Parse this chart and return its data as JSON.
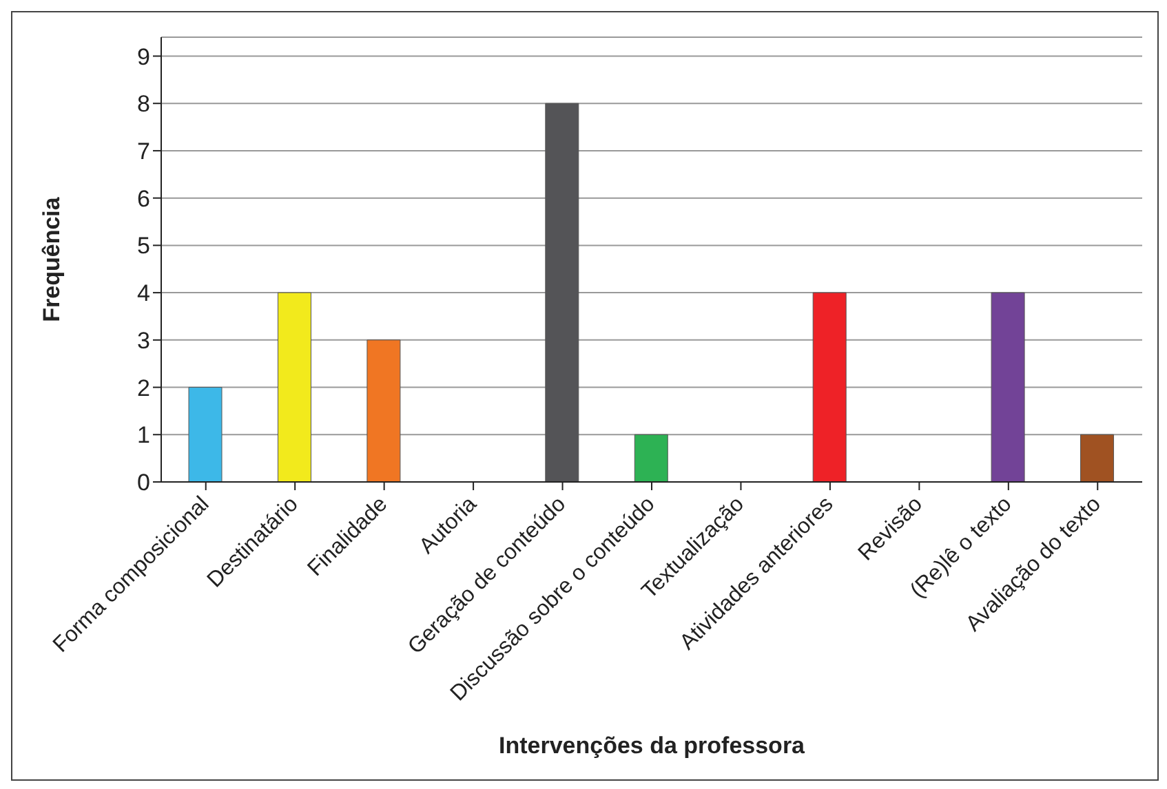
{
  "chart_data": {
    "type": "bar",
    "xlabel": "Intervenções da professora",
    "ylabel": "Frequência",
    "categories": [
      "Forma composicional",
      "Destinatário",
      "Finalidade",
      "Autoria",
      "Geração de conteúdo",
      "Discussão sobre o conteúdo",
      "Textualização",
      "Atividades anteriores",
      "Revisão",
      "(Re)lê o texto",
      "Avaliação do texto"
    ],
    "values": [
      2,
      4,
      3,
      0,
      8,
      1,
      0,
      4,
      0,
      4,
      1
    ],
    "colors": [
      "#3db8e8",
      "#f2ea1c",
      "#f07623",
      "#888888",
      "#545457",
      "#2db254",
      "#aaaaaa",
      "#ee2227",
      "#999999",
      "#724397",
      "#a05222"
    ],
    "ylim": [
      0,
      9.4
    ],
    "yticks": [
      0,
      1,
      2,
      3,
      4,
      5,
      6,
      7,
      8,
      9
    ],
    "grid": "y",
    "legend": false
  }
}
